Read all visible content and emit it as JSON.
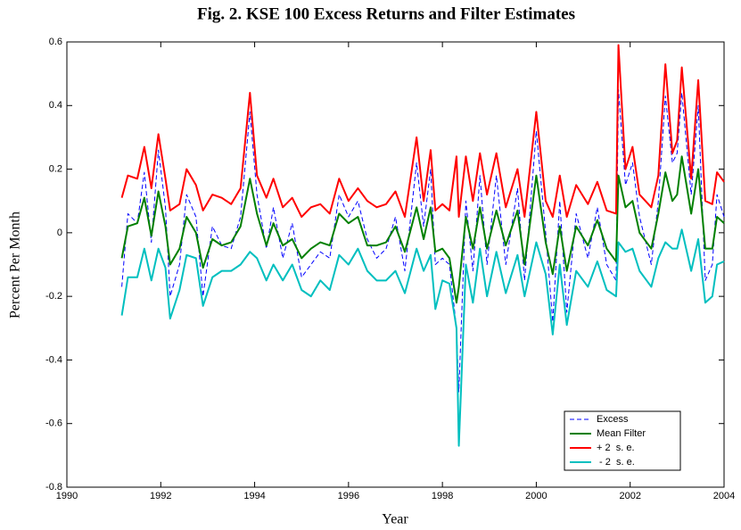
{
  "chart_data": {
    "type": "line",
    "title": "Fig. 2. KSE 100 Excess Returns and Filter Estimates",
    "x_label": "Year",
    "y_label": "Percent Per Month",
    "xlim": [
      1990,
      2004
    ],
    "xticks": [
      1990,
      1992,
      1994,
      1996,
      1998,
      2000,
      2002,
      2004
    ],
    "ylim": [
      -0.8,
      0.6
    ],
    "yticks": [
      -0.8,
      -0.6,
      -0.4,
      -0.2,
      0,
      0.2,
      0.4,
      0.6
    ],
    "legend": "lower right",
    "grid": false,
    "x": [
      1991.17,
      1991.3,
      1991.5,
      1991.65,
      1991.8,
      1991.95,
      1992.1,
      1992.2,
      1992.4,
      1992.55,
      1992.75,
      1992.9,
      1993.1,
      1993.3,
      1993.5,
      1993.7,
      1993.9,
      1994.05,
      1994.25,
      1994.4,
      1994.6,
      1994.8,
      1995.0,
      1995.2,
      1995.4,
      1995.6,
      1995.8,
      1996.0,
      1996.2,
      1996.4,
      1996.6,
      1996.8,
      1997.0,
      1997.2,
      1997.45,
      1997.6,
      1997.75,
      1997.85,
      1998.0,
      1998.15,
      1998.3,
      1998.35,
      1998.5,
      1998.65,
      1998.8,
      1998.95,
      1999.15,
      1999.35,
      1999.6,
      1999.75,
      2000.0,
      2000.2,
      2000.35,
      2000.5,
      2000.65,
      2000.85,
      2001.1,
      2001.3,
      2001.5,
      2001.7,
      2001.75,
      2001.9,
      2002.05,
      2002.2,
      2002.45,
      2002.6,
      2002.75,
      2002.9,
      2003.0,
      2003.1,
      2003.3,
      2003.45,
      2003.6,
      2003.75,
      2003.85,
      2004.0
    ],
    "series": [
      {
        "name": "Excess",
        "color": "#0000ff",
        "linestyle": "dashed",
        "width": 1,
        "values": [
          -0.17,
          0.06,
          0.03,
          0.19,
          -0.03,
          0.26,
          0.08,
          -0.2,
          -0.1,
          0.12,
          0.05,
          -0.2,
          0.02,
          -0.04,
          -0.05,
          0.05,
          0.38,
          0.12,
          -0.05,
          0.08,
          -0.08,
          0.03,
          -0.14,
          -0.1,
          -0.06,
          -0.08,
          0.12,
          0.05,
          0.1,
          -0.02,
          -0.08,
          -0.05,
          0.05,
          -0.12,
          0.22,
          0.02,
          0.2,
          -0.1,
          -0.08,
          -0.1,
          -0.3,
          -0.5,
          0.1,
          -0.12,
          0.18,
          -0.1,
          0.18,
          -0.1,
          0.14,
          -0.15,
          0.32,
          0.0,
          -0.28,
          0.1,
          -0.25,
          0.06,
          -0.08,
          0.08,
          -0.1,
          -0.15,
          0.45,
          0.15,
          0.22,
          0.05,
          -0.1,
          0.1,
          0.43,
          0.22,
          0.25,
          0.44,
          0.12,
          0.4,
          -0.15,
          -0.1,
          0.12,
          0.05
        ]
      },
      {
        "name": "Mean Filter",
        "color": "#008000",
        "linestyle": "solid",
        "width": 2,
        "values": [
          -0.08,
          0.02,
          0.03,
          0.11,
          -0.01,
          0.13,
          0.02,
          -0.1,
          -0.05,
          0.05,
          0.0,
          -0.11,
          -0.02,
          -0.04,
          -0.03,
          0.02,
          0.17,
          0.06,
          -0.04,
          0.03,
          -0.04,
          -0.02,
          -0.08,
          -0.05,
          -0.03,
          -0.04,
          0.06,
          0.03,
          0.05,
          -0.04,
          -0.04,
          -0.03,
          0.02,
          -0.06,
          0.08,
          -0.02,
          0.08,
          -0.06,
          -0.05,
          -0.08,
          -0.22,
          -0.17,
          0.05,
          -0.05,
          0.08,
          -0.05,
          0.07,
          -0.04,
          0.07,
          -0.1,
          0.18,
          -0.03,
          -0.13,
          0.02,
          -0.12,
          0.02,
          -0.04,
          0.04,
          -0.05,
          -0.09,
          0.18,
          0.08,
          0.1,
          0.0,
          -0.05,
          0.06,
          0.19,
          0.1,
          0.12,
          0.24,
          0.06,
          0.2,
          -0.05,
          -0.05,
          0.05,
          0.03
        ]
      },
      {
        "name": "+ 2  s. e.",
        "color": "#ff0000",
        "linestyle": "solid",
        "width": 2,
        "values": [
          0.11,
          0.18,
          0.17,
          0.27,
          0.14,
          0.31,
          0.17,
          0.07,
          0.09,
          0.2,
          0.15,
          0.07,
          0.12,
          0.11,
          0.09,
          0.14,
          0.44,
          0.18,
          0.11,
          0.17,
          0.08,
          0.11,
          0.05,
          0.08,
          0.09,
          0.06,
          0.17,
          0.1,
          0.14,
          0.1,
          0.08,
          0.09,
          0.13,
          0.05,
          0.3,
          0.1,
          0.26,
          0.07,
          0.09,
          0.07,
          0.24,
          0.05,
          0.24,
          0.1,
          0.25,
          0.12,
          0.25,
          0.08,
          0.2,
          0.05,
          0.38,
          0.1,
          0.05,
          0.18,
          0.05,
          0.15,
          0.09,
          0.16,
          0.07,
          0.06,
          0.59,
          0.2,
          0.27,
          0.12,
          0.08,
          0.18,
          0.53,
          0.25,
          0.29,
          0.52,
          0.17,
          0.48,
          0.1,
          0.09,
          0.19,
          0.16
        ]
      },
      {
        "name": " - 2  s. e.",
        "color": "#00bfbf",
        "linestyle": "solid",
        "width": 2,
        "values": [
          -0.26,
          -0.14,
          -0.14,
          -0.05,
          -0.15,
          -0.05,
          -0.11,
          -0.27,
          -0.18,
          -0.07,
          -0.08,
          -0.23,
          -0.14,
          -0.12,
          -0.12,
          -0.1,
          -0.06,
          -0.08,
          -0.15,
          -0.1,
          -0.15,
          -0.1,
          -0.18,
          -0.2,
          -0.15,
          -0.18,
          -0.07,
          -0.1,
          -0.05,
          -0.12,
          -0.15,
          -0.15,
          -0.12,
          -0.19,
          -0.05,
          -0.12,
          -0.07,
          -0.24,
          -0.15,
          -0.16,
          -0.3,
          -0.67,
          -0.1,
          -0.22,
          -0.05,
          -0.2,
          -0.06,
          -0.19,
          -0.07,
          -0.2,
          -0.03,
          -0.13,
          -0.32,
          -0.1,
          -0.29,
          -0.12,
          -0.17,
          -0.09,
          -0.18,
          -0.2,
          -0.03,
          -0.06,
          -0.05,
          -0.12,
          -0.17,
          -0.08,
          -0.03,
          -0.05,
          -0.05,
          0.01,
          -0.12,
          -0.02,
          -0.22,
          -0.2,
          -0.1,
          -0.09
        ]
      }
    ]
  }
}
